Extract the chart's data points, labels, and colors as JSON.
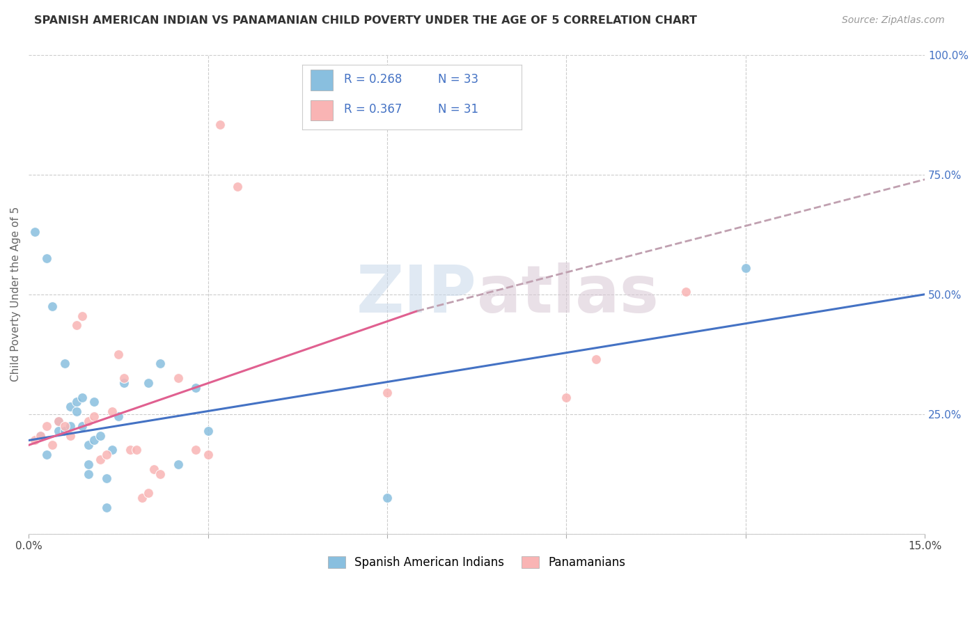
{
  "title": "SPANISH AMERICAN INDIAN VS PANAMANIAN CHILD POVERTY UNDER THE AGE OF 5 CORRELATION CHART",
  "source": "Source: ZipAtlas.com",
  "ylabel": "Child Poverty Under the Age of 5",
  "xlim": [
    0.0,
    0.15
  ],
  "ylim": [
    0.0,
    1.0
  ],
  "xtick_positions": [
    0.0,
    0.03,
    0.06,
    0.09,
    0.12,
    0.15
  ],
  "xtick_labels": [
    "0.0%",
    "",
    "",
    "",
    "",
    "15.0%"
  ],
  "ytick_positions": [
    0.0,
    0.25,
    0.5,
    0.75,
    1.0
  ],
  "ytick_labels_right": [
    "",
    "25.0%",
    "50.0%",
    "75.0%",
    "100.0%"
  ],
  "blue_scatter_color": "#89bfdf",
  "pink_scatter_color": "#f9b4b4",
  "trend_blue_color": "#4472c4",
  "trend_pink_color": "#e06090",
  "trend_pink_dashed_color": "#c0a0b0",
  "axis_label_color": "#4472c4",
  "legend_R1": "0.268",
  "legend_N1": "33",
  "legend_R2": "0.367",
  "legend_N2": "31",
  "label1": "Spanish American Indians",
  "label2": "Panamanians",
  "watermark_zip": "ZIP",
  "watermark_atlas": "atlas",
  "blue_scatter_x": [
    0.001,
    0.002,
    0.003,
    0.003,
    0.004,
    0.005,
    0.005,
    0.006,
    0.006,
    0.007,
    0.007,
    0.008,
    0.008,
    0.009,
    0.009,
    0.01,
    0.01,
    0.01,
    0.011,
    0.011,
    0.012,
    0.013,
    0.013,
    0.014,
    0.015,
    0.016,
    0.02,
    0.022,
    0.025,
    0.028,
    0.03,
    0.06,
    0.12
  ],
  "blue_scatter_y": [
    0.63,
    0.205,
    0.165,
    0.575,
    0.475,
    0.235,
    0.215,
    0.215,
    0.355,
    0.225,
    0.265,
    0.255,
    0.275,
    0.285,
    0.225,
    0.185,
    0.145,
    0.125,
    0.275,
    0.195,
    0.205,
    0.115,
    0.055,
    0.175,
    0.245,
    0.315,
    0.315,
    0.355,
    0.145,
    0.305,
    0.215,
    0.075,
    0.555
  ],
  "pink_scatter_x": [
    0.001,
    0.002,
    0.003,
    0.004,
    0.005,
    0.006,
    0.007,
    0.008,
    0.009,
    0.01,
    0.011,
    0.012,
    0.013,
    0.014,
    0.015,
    0.016,
    0.017,
    0.018,
    0.019,
    0.02,
    0.021,
    0.022,
    0.025,
    0.028,
    0.03,
    0.032,
    0.035,
    0.06,
    0.09,
    0.095,
    0.11
  ],
  "pink_scatter_y": [
    0.195,
    0.205,
    0.225,
    0.185,
    0.235,
    0.225,
    0.205,
    0.435,
    0.455,
    0.235,
    0.245,
    0.155,
    0.165,
    0.255,
    0.375,
    0.325,
    0.175,
    0.175,
    0.075,
    0.085,
    0.135,
    0.125,
    0.325,
    0.175,
    0.165,
    0.855,
    0.725,
    0.295,
    0.285,
    0.365,
    0.505
  ],
  "blue_trend_x0": 0.0,
  "blue_trend_x1": 0.15,
  "blue_trend_y0": 0.195,
  "blue_trend_y1": 0.5,
  "pink_trend_solid_x0": 0.0,
  "pink_trend_solid_x1": 0.065,
  "pink_trend_solid_y0": 0.185,
  "pink_trend_solid_y1": 0.465,
  "pink_trend_dashed_x0": 0.065,
  "pink_trend_dashed_x1": 0.15,
  "pink_trend_dashed_y0": 0.465,
  "pink_trend_dashed_y1": 0.74
}
